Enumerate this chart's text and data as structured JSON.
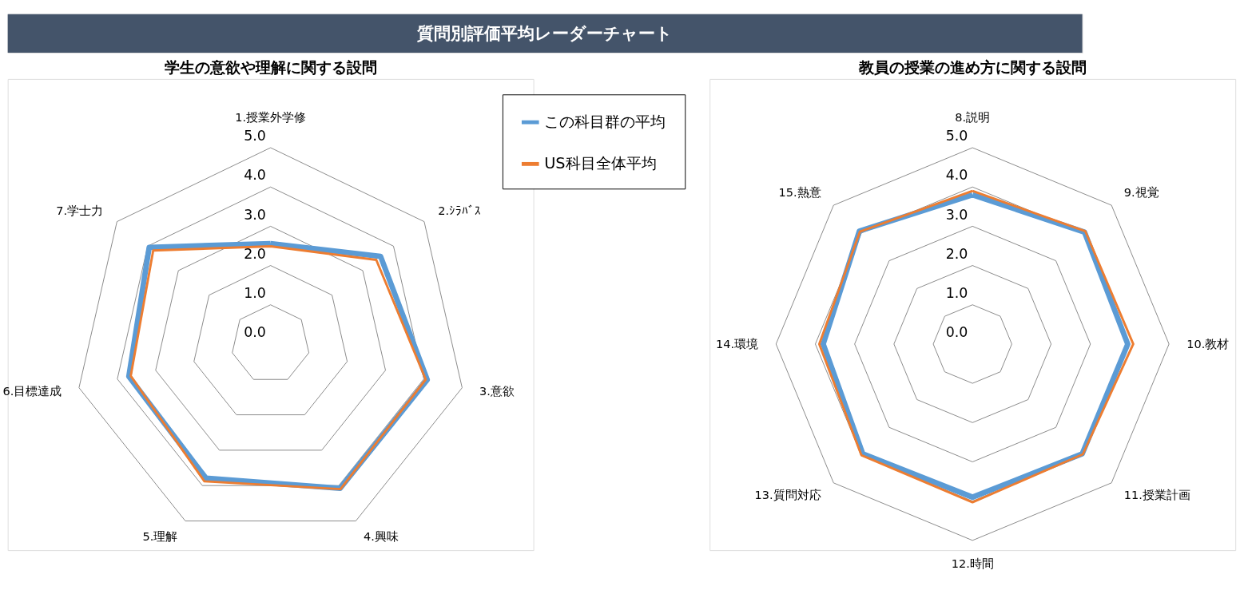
{
  "chart_data": [
    {
      "type": "radar",
      "title": "学生の意欲や理解に関する設問",
      "annotations": [
        "質問別評価平均レーダーチャート"
      ],
      "legend": "top right",
      "grid": true,
      "categories": [
        "1.授業外学修",
        "2.ｼﾗﾊﾞｽ",
        "3.意欲",
        "4.興味",
        "5.理解",
        "6.目標達成",
        "7.学士力"
      ],
      "ylim": [
        0,
        5
      ],
      "yticks": [
        {
          "value": 0,
          "label": "0.0"
        },
        {
          "value": 1,
          "label": "1.0"
        },
        {
          "value": 2,
          "label": "2.0"
        },
        {
          "value": 3,
          "label": "3.0"
        },
        {
          "value": 4,
          "label": "4.0"
        },
        {
          "value": 5,
          "label": "5.0"
        }
      ],
      "series": [
        {
          "name": "この科目群の平均",
          "color": "#5b9bd5",
          "values": [
            2.56,
            3.58,
            4.09,
            4.08,
            3.79,
            3.7,
            3.95
          ]
        },
        {
          "name": "US科目全体平均",
          "color": "#ed7d31",
          "values": [
            2.49,
            3.44,
            4.05,
            4.1,
            3.88,
            3.65,
            3.82
          ]
        }
      ]
    },
    {
      "type": "radar",
      "title": "教員の授業の進め方に関する設問",
      "grid": true,
      "categories": [
        "8.説明",
        "9.視覚",
        "10.教材",
        "11.授業計画",
        "12.時間",
        "13.質問対応",
        "14.環境",
        "15.熱意"
      ],
      "ylim": [
        0,
        5
      ],
      "yticks": [
        {
          "value": 0,
          "label": "0.0"
        },
        {
          "value": 1,
          "label": "1.0"
        },
        {
          "value": 2,
          "label": "2.0"
        },
        {
          "value": 3,
          "label": "3.0"
        },
        {
          "value": 4,
          "label": "4.0"
        },
        {
          "value": 5,
          "label": "5.0"
        }
      ],
      "series": [
        {
          "color": "#5b9bd5",
          "values": [
            3.8,
            4.03,
            3.95,
            3.95,
            3.9,
            3.95,
            3.8,
            4.07
          ]
        },
        {
          "color": "#ed7d31",
          "values": [
            3.9,
            4.06,
            4.09,
            3.97,
            4.03,
            4.0,
            3.9,
            4.05
          ]
        }
      ]
    }
  ]
}
